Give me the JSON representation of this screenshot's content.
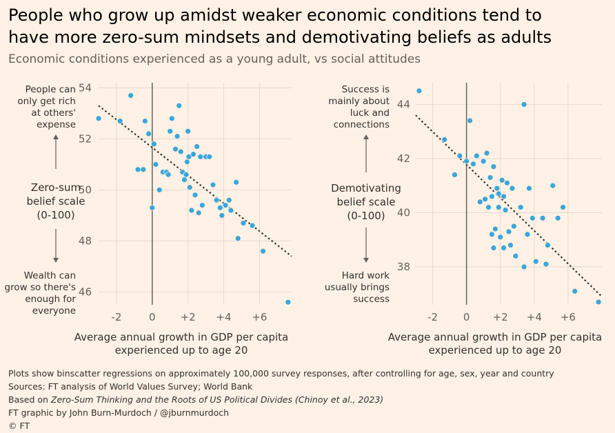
{
  "title_line1": "People who grow up amidst weaker economic conditions tend to",
  "title_line2": "have more zero-sum mindsets and demotivating beliefs as adults",
  "subtitle": "Economic conditions experienced as a young adult, vs social attitudes",
  "colors": {
    "background": "#FFF1E5",
    "dots": "#3AA7DA",
    "trend": "#33302E",
    "grid": "#E6D9CE",
    "zero_line": "#66605C"
  },
  "chart_data": [
    {
      "type": "scatter",
      "title": "",
      "xlabel_line1": "Average annual growth in GDP per capita",
      "xlabel_line2": "experienced up to age 20",
      "ylabel": [
        "Zero-sum",
        "belief scale",
        "(0-100)"
      ],
      "top_annotation": [
        "People can",
        "only get rich",
        "at others'",
        "expense"
      ],
      "bottom_annotation": [
        "Wealth can",
        "grow so there's",
        "enough for",
        "everyone"
      ],
      "xlim": [
        -3,
        7.8
      ],
      "ylim": [
        45.5,
        54.2
      ],
      "x_ticks": [
        -2,
        0,
        2,
        4,
        6
      ],
      "x_tick_labels": [
        "-2",
        "0",
        "+2",
        "+4",
        "+6"
      ],
      "y_ticks": [
        46,
        48,
        50,
        52,
        54
      ],
      "y_tick_labels": [
        "46",
        "48",
        "50",
        "52",
        "54"
      ],
      "trend": {
        "x": [
          -3,
          7.8
        ],
        "y": [
          53.3,
          47.4
        ]
      },
      "points": [
        [
          -3.0,
          52.8
        ],
        [
          -1.8,
          52.7
        ],
        [
          -1.2,
          53.7
        ],
        [
          -0.8,
          50.8
        ],
        [
          -0.5,
          50.8
        ],
        [
          -0.4,
          52.7
        ],
        [
          -0.2,
          52.2
        ],
        [
          0.0,
          49.3
        ],
        [
          0.1,
          51.8
        ],
        [
          0.2,
          51.0
        ],
        [
          0.4,
          50.0
        ],
        [
          0.6,
          50.7
        ],
        [
          0.8,
          50.7
        ],
        [
          0.9,
          50.6
        ],
        [
          1.0,
          52.3
        ],
        [
          1.1,
          52.8
        ],
        [
          1.3,
          51.6
        ],
        [
          1.4,
          52.1
        ],
        [
          1.5,
          53.3
        ],
        [
          1.6,
          51.5
        ],
        [
          1.7,
          50.7
        ],
        [
          1.8,
          50.4
        ],
        [
          1.9,
          50.6
        ],
        [
          1.95,
          51.1
        ],
        [
          2.0,
          52.3
        ],
        [
          2.05,
          51.3
        ],
        [
          2.1,
          50.1
        ],
        [
          2.2,
          49.2
        ],
        [
          2.3,
          51.4
        ],
        [
          2.4,
          49.8
        ],
        [
          2.5,
          51.7
        ],
        [
          2.6,
          49.1
        ],
        [
          2.7,
          51.3
        ],
        [
          2.8,
          49.4
        ],
        [
          3.0,
          51.3
        ],
        [
          3.2,
          51.3
        ],
        [
          3.4,
          50.2
        ],
        [
          3.6,
          49.6
        ],
        [
          3.8,
          49.3
        ],
        [
          3.9,
          49.0
        ],
        [
          4.1,
          49.4
        ],
        [
          4.3,
          49.6
        ],
        [
          4.4,
          49.2
        ],
        [
          4.7,
          50.3
        ],
        [
          4.8,
          48.1
        ],
        [
          5.1,
          48.7
        ],
        [
          5.6,
          48.6
        ],
        [
          6.2,
          47.6
        ],
        [
          7.6,
          45.6
        ]
      ]
    },
    {
      "type": "scatter",
      "title": "",
      "xlabel_line1": "Average annual growth in GDP per capita",
      "xlabel_line2": "experienced up to age 20",
      "ylabel": [
        "Demotivating",
        "belief scale",
        "(0-100)"
      ],
      "top_annotation": [
        "Success is",
        "mainly about",
        "luck and",
        "connections"
      ],
      "bottom_annotation": [
        "Hard work",
        "usually brings",
        "success"
      ],
      "xlim": [
        -3,
        8
      ],
      "ylim": [
        36.6,
        44.8
      ],
      "x_ticks": [
        -2,
        0,
        2,
        4,
        6
      ],
      "x_tick_labels": [
        "-2",
        "0",
        "+2",
        "+4",
        "+6"
      ],
      "y_ticks": [
        38,
        40,
        42,
        44
      ],
      "y_tick_labels": [
        "38",
        "40",
        "42",
        "44"
      ],
      "trend": {
        "x": [
          -3,
          8
        ],
        "y": [
          43.6,
          36.9
        ]
      },
      "points": [
        [
          -2.8,
          44.5
        ],
        [
          -1.3,
          42.7
        ],
        [
          -0.7,
          41.4
        ],
        [
          -0.4,
          42.1
        ],
        [
          0.0,
          41.9
        ],
        [
          0.2,
          43.4
        ],
        [
          0.4,
          41.8
        ],
        [
          0.6,
          42.1
        ],
        [
          0.8,
          40.4
        ],
        [
          1.0,
          41.9
        ],
        [
          1.1,
          40.5
        ],
        [
          1.2,
          42.2
        ],
        [
          1.3,
          40.2
        ],
        [
          1.4,
          41.3
        ],
        [
          1.5,
          39.2
        ],
        [
          1.5,
          40.6
        ],
        [
          1.6,
          41.7
        ],
        [
          1.6,
          38.7
        ],
        [
          1.7,
          39.4
        ],
        [
          1.8,
          40.9
        ],
        [
          1.9,
          40.2
        ],
        [
          1.9,
          40.7
        ],
        [
          2.0,
          39.1
        ],
        [
          2.1,
          41.2
        ],
        [
          2.2,
          40.6
        ],
        [
          2.2,
          38.7
        ],
        [
          2.3,
          40.1
        ],
        [
          2.4,
          41.1
        ],
        [
          2.5,
          39.3
        ],
        [
          2.6,
          38.8
        ],
        [
          2.7,
          40.9
        ],
        [
          2.8,
          39.5
        ],
        [
          2.9,
          38.4
        ],
        [
          3.2,
          40.2
        ],
        [
          3.4,
          38.0
        ],
        [
          3.4,
          44.0
        ],
        [
          3.6,
          39.2
        ],
        [
          3.7,
          40.9
        ],
        [
          3.9,
          39.8
        ],
        [
          4.1,
          38.2
        ],
        [
          4.5,
          39.8
        ],
        [
          4.7,
          38.1
        ],
        [
          4.8,
          38.8
        ],
        [
          5.1,
          41.0
        ],
        [
          5.4,
          39.8
        ],
        [
          5.7,
          40.2
        ],
        [
          6.4,
          37.1
        ],
        [
          7.8,
          36.7
        ]
      ]
    }
  ],
  "footer": {
    "line1": "Plots show binscatter regressions on approximately 100,000 survey responses, after controlling for age, sex, year and country",
    "line2": "Sources: FT analysis of World Values Survey; World Bank",
    "line3_prefix": "Based on ",
    "line3_italic": "Zero-Sum Thinking and the Roots of US Political Divides (Chinoy et al., 2023)",
    "line4": "FT graphic by John Burn-Murdoch / @jburnmurdoch",
    "line5": "© FT"
  }
}
